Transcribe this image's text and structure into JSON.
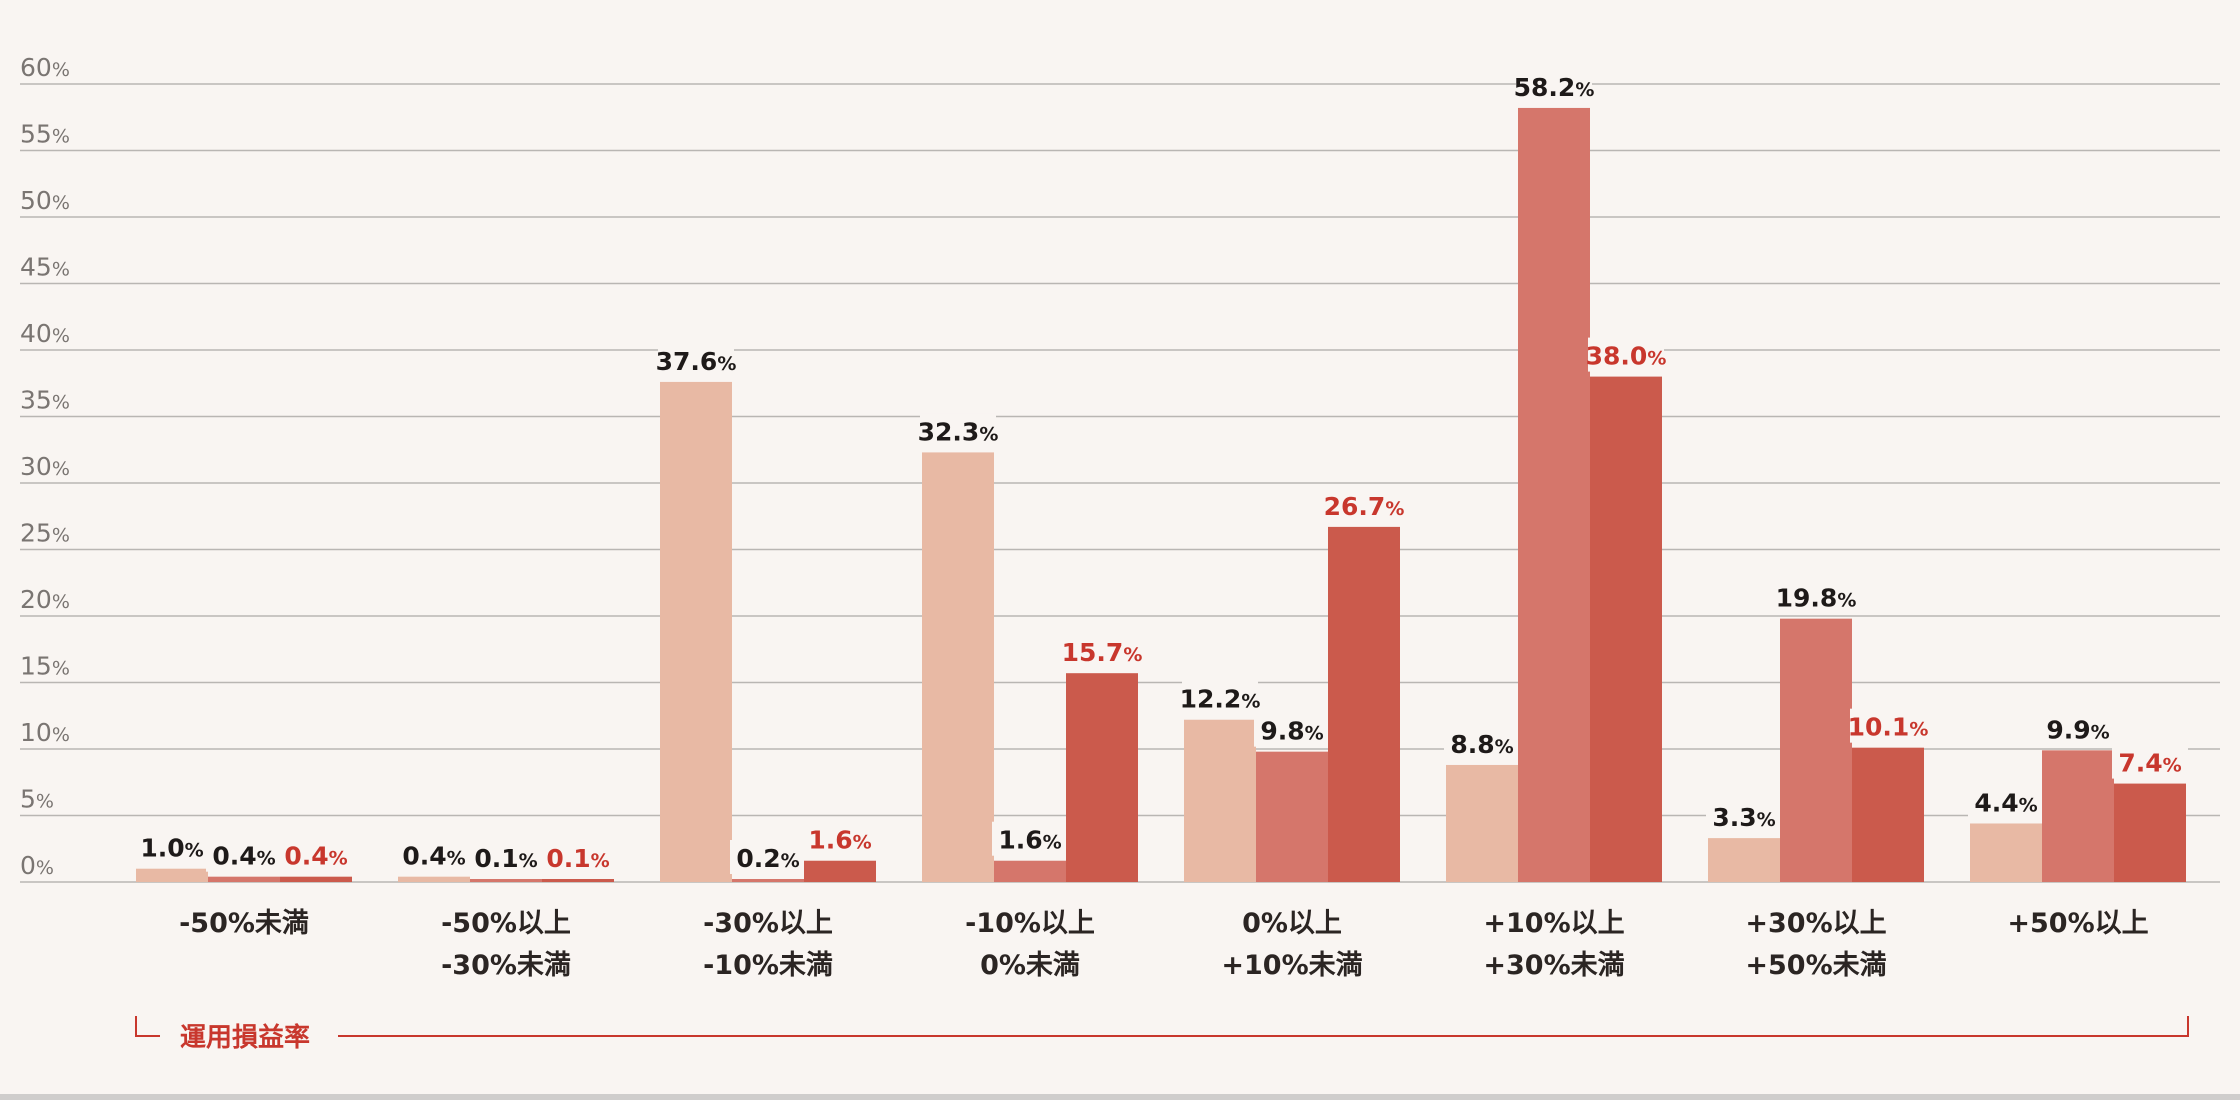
{
  "chart_data": {
    "type": "bar",
    "categories": [
      [
        "-50%未満"
      ],
      [
        "-50%以上",
        "-30%未満"
      ],
      [
        "-30%以上",
        "-10%未満"
      ],
      [
        "-10%以上",
        "0%未満"
      ],
      [
        "0%以上",
        "+10%未満"
      ],
      [
        "+10%以上",
        "+30%未満"
      ],
      [
        "+30%以上",
        "+50%未満"
      ],
      [
        "+50%以上"
      ]
    ],
    "series": [
      {
        "values": [
          1.0,
          0.4,
          37.6,
          32.3,
          12.2,
          8.8,
          3.3,
          4.4
        ]
      },
      {
        "values": [
          0.4,
          0.1,
          0.2,
          1.6,
          9.8,
          58.2,
          19.8,
          9.9
        ]
      },
      {
        "values": [
          0.4,
          0.1,
          1.6,
          15.7,
          26.7,
          38.0,
          10.1,
          7.4
        ]
      }
    ],
    "colors": [
      "#e8b9a4",
      "#d5766b",
      "#cb5a4c"
    ],
    "label_colors": [
      "#1e1a19",
      "#1e1a19",
      "#c8372d"
    ],
    "ylim": [
      0,
      60
    ],
    "yticks": [
      0,
      5,
      10,
      15,
      20,
      25,
      30,
      35,
      40,
      45,
      50,
      55,
      60
    ],
    "unit": "%",
    "xlabel": "運用損益率",
    "xlabel_color": "#c8372d",
    "grid": true,
    "legend": "none"
  }
}
